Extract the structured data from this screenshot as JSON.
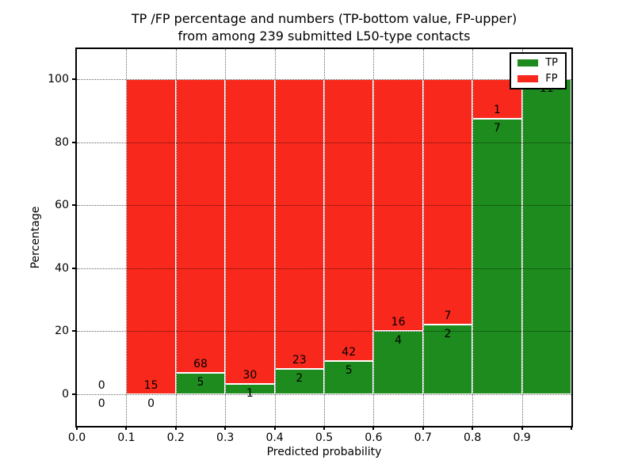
{
  "title": {
    "line1": "TP /FP percentage and numbers (TP-bottom value, FP-upper)",
    "line2": "from among 239 submitted L50-type contacts"
  },
  "axes": {
    "xlabel": "Predicted probability",
    "ylabel": "Percentage"
  },
  "legend": {
    "tp_label": "TP",
    "fp_label": "FP"
  },
  "colors": {
    "tp_green": "#1d8b1d",
    "fp_red": "#f8281c",
    "grid": "rgba(0,0,0,0.6)",
    "text": "#000000",
    "background": "#ffffff"
  },
  "chart_data": {
    "type": "bar",
    "stacked": true,
    "normalized": "each bar scaled to 100%",
    "total_submitted": 239,
    "title": "TP /FP percentage and numbers (TP-bottom value, FP-upper) from among 239 submitted L50-type contacts",
    "xlabel": "Predicted probability",
    "ylabel": "Percentage",
    "xlim": [
      0.0,
      1.0
    ],
    "ylim": [
      -10.5,
      109.5
    ],
    "grid": "dotted, both axes, drawn above bars",
    "legend_position": "upper right",
    "x_tick_labels": [
      "0.0",
      "0.1",
      "0.2",
      "0.3",
      "0.4",
      "0.5",
      "0.6",
      "0.7",
      "0.8",
      "0.9"
    ],
    "y_ticks": [
      0,
      20,
      40,
      60,
      80,
      100
    ],
    "series": [
      {
        "name": "TP",
        "counts": [
          0,
          0,
          5,
          1,
          2,
          5,
          4,
          2,
          7,
          11
        ]
      },
      {
        "name": "FP",
        "counts": [
          0,
          15,
          68,
          30,
          23,
          42,
          16,
          7,
          1,
          0
        ]
      }
    ],
    "bins": [
      {
        "range": [
          0.0,
          0.1
        ],
        "tp": 0,
        "fp": 0,
        "tp_pct": 0.0,
        "tp_label": "0",
        "fp_label": "0"
      },
      {
        "range": [
          0.1,
          0.2
        ],
        "tp": 0,
        "fp": 15,
        "tp_pct": 0.0,
        "tp_label": "0",
        "fp_label": "15"
      },
      {
        "range": [
          0.2,
          0.3
        ],
        "tp": 5,
        "fp": 68,
        "tp_pct": 6.8,
        "tp_label": "5",
        "fp_label": "68"
      },
      {
        "range": [
          0.3,
          0.4
        ],
        "tp": 1,
        "fp": 30,
        "tp_pct": 3.2,
        "tp_label": "1",
        "fp_label": "30"
      },
      {
        "range": [
          0.4,
          0.5
        ],
        "tp": 2,
        "fp": 23,
        "tp_pct": 8.0,
        "tp_label": "2",
        "fp_label": "23"
      },
      {
        "range": [
          0.5,
          0.6
        ],
        "tp": 5,
        "fp": 42,
        "tp_pct": 10.6,
        "tp_label": "5",
        "fp_label": "42"
      },
      {
        "range": [
          0.6,
          0.7
        ],
        "tp": 4,
        "fp": 16,
        "tp_pct": 20.0,
        "tp_label": "4",
        "fp_label": "16"
      },
      {
        "range": [
          0.7,
          0.8
        ],
        "tp": 2,
        "fp": 7,
        "tp_pct": 22.2,
        "tp_label": "2",
        "fp_label": "7"
      },
      {
        "range": [
          0.8,
          0.9
        ],
        "tp": 7,
        "fp": 1,
        "tp_pct": 87.5,
        "tp_label": "7",
        "fp_label": "1"
      },
      {
        "range": [
          0.9,
          1.0
        ],
        "tp": 11,
        "fp": 0,
        "tp_pct": 100.0,
        "tp_label": "11",
        "fp_label": null
      }
    ]
  }
}
